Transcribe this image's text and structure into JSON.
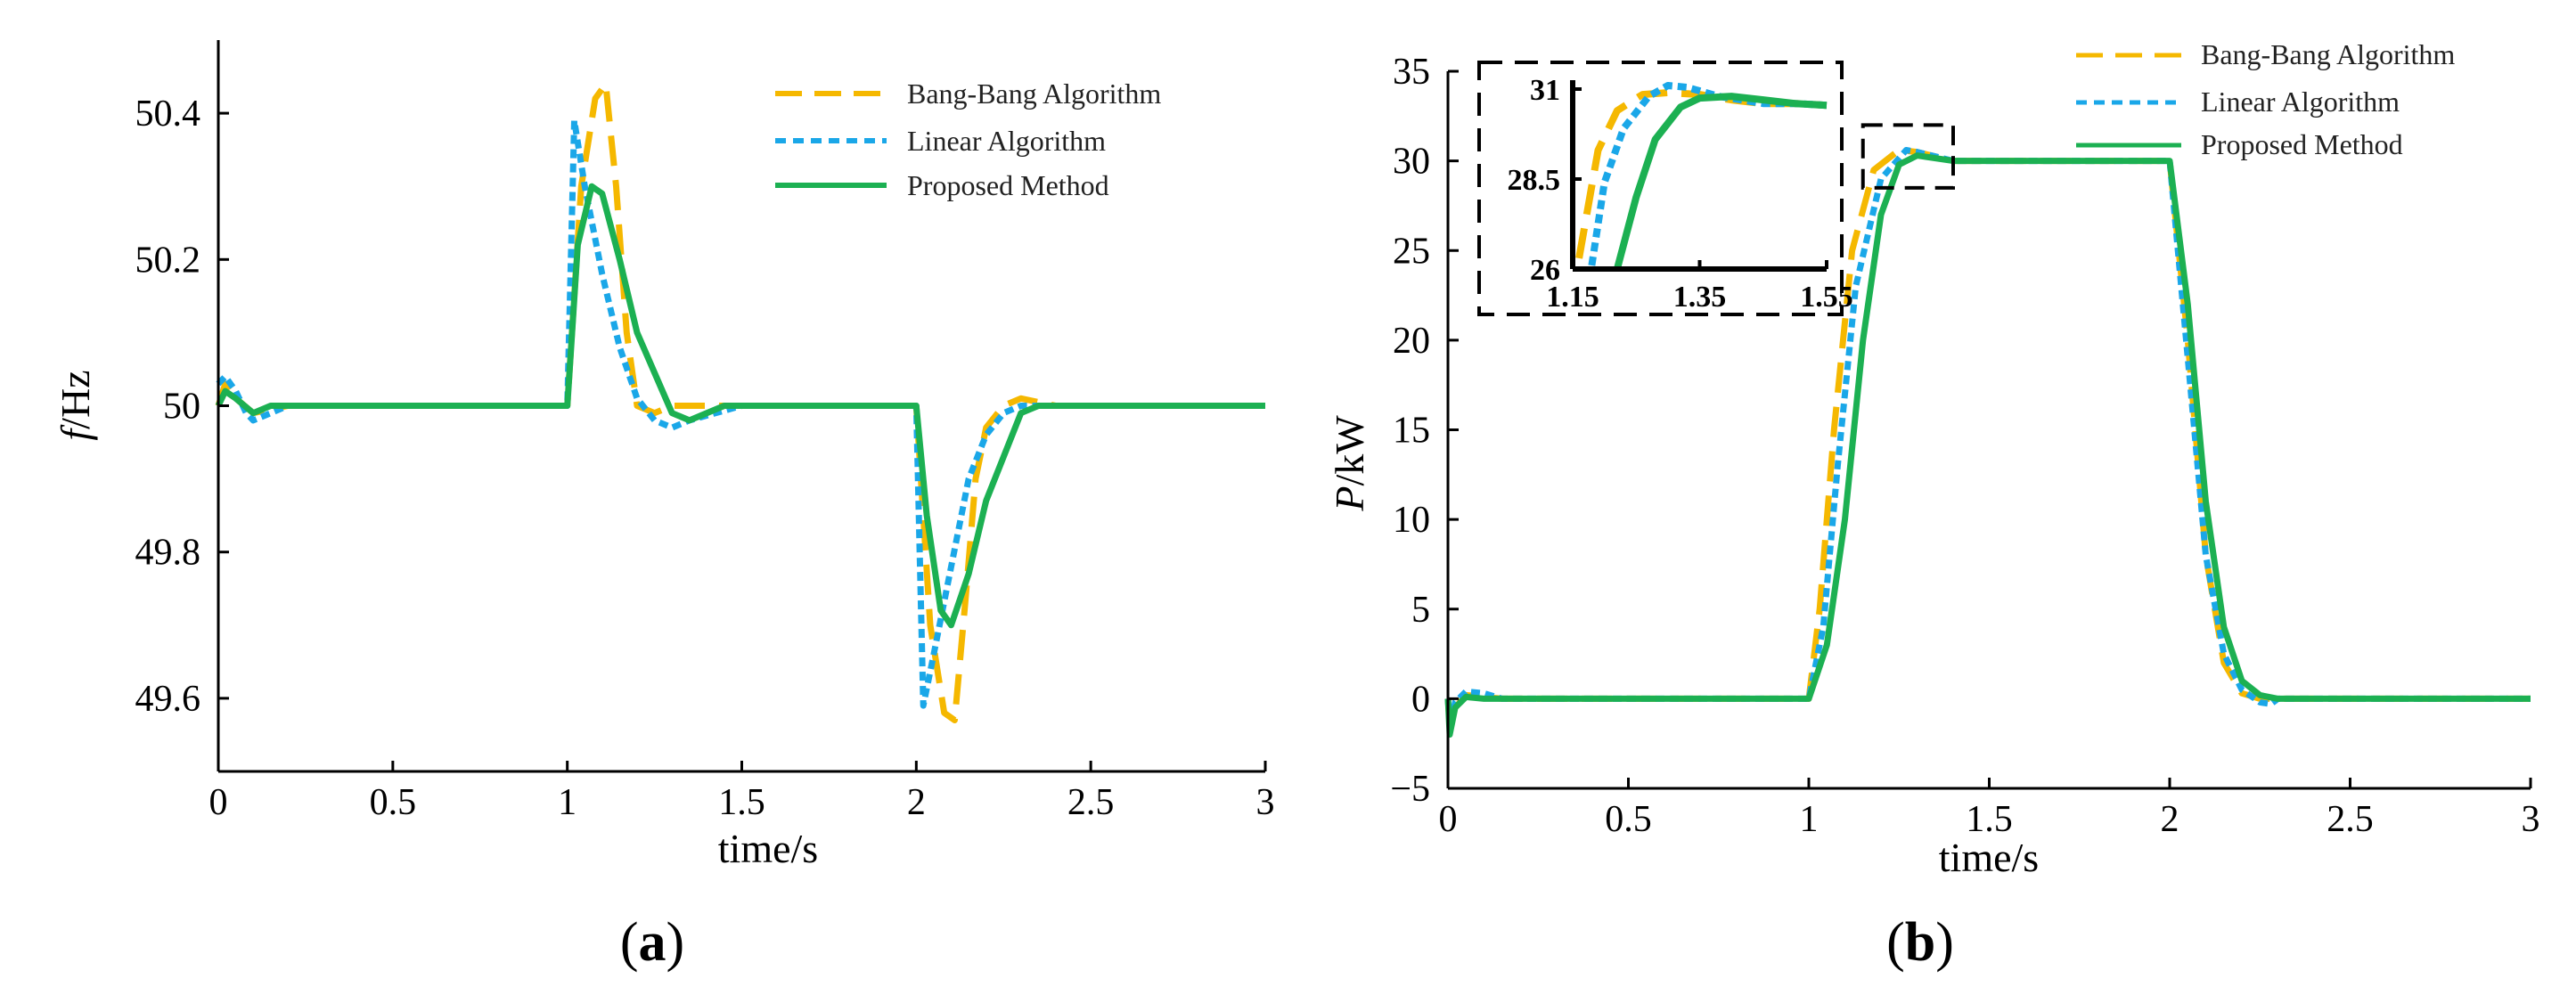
{
  "colors": {
    "bang": "#F5B800",
    "linear": "#1AA7E8",
    "proposed": "#1CB052"
  },
  "chart_data": [
    {
      "id": "a",
      "type": "line",
      "panel_label": "a",
      "xlabel": "time/s",
      "ylabel_italic": "f",
      "ylabel_unit": "/Hz",
      "xlim": [
        0,
        3
      ],
      "ylim": [
        49.5,
        50.5
      ],
      "xticks": [
        "0",
        "0.5",
        "1",
        "1.5",
        "2",
        "2.5",
        "3"
      ],
      "yticks": [
        "49.6",
        "49.8",
        "50",
        "50.2",
        "50.4"
      ],
      "legend": [
        "Bang-Bang Algorithm",
        "Linear Algorithm",
        "Proposed Method"
      ],
      "legend_position": "top-right",
      "series": [
        {
          "name": "Bang-Bang Algorithm",
          "style": "dashed",
          "x": [
            0,
            0.02,
            0.05,
            0.1,
            0.2,
            0.999,
            1.0,
            1.04,
            1.08,
            1.11,
            1.14,
            1.17,
            1.2,
            1.25,
            1.3,
            1.4,
            1.999,
            2.0,
            2.04,
            2.08,
            2.11,
            2.14,
            2.17,
            2.2,
            2.25,
            2.3,
            2.4,
            3.0
          ],
          "y": [
            50.0,
            50.03,
            50.01,
            49.99,
            50.0,
            50.0,
            50.0,
            50.3,
            50.42,
            50.44,
            50.3,
            50.1,
            50.0,
            49.99,
            50.0,
            50.0,
            50.0,
            50.0,
            49.7,
            49.58,
            49.57,
            49.73,
            49.9,
            49.97,
            50.0,
            50.01,
            50.0,
            50.0
          ]
        },
        {
          "name": "Linear Algorithm",
          "style": "dotted",
          "x": [
            0,
            0.02,
            0.05,
            0.08,
            0.1,
            0.2,
            0.999,
            1.0,
            1.02,
            1.05,
            1.1,
            1.15,
            1.2,
            1.25,
            1.3,
            1.35,
            1.5,
            1.999,
            2.0,
            2.02,
            2.05,
            2.1,
            2.15,
            2.2,
            2.25,
            2.3,
            2.35,
            3.0
          ],
          "y": [
            50.03,
            50.04,
            50.02,
            49.99,
            49.98,
            50.0,
            50.0,
            50.0,
            50.39,
            50.3,
            50.18,
            50.08,
            50.01,
            49.98,
            49.97,
            49.98,
            50.0,
            50.0,
            50.0,
            49.59,
            49.66,
            49.78,
            49.9,
            49.96,
            49.99,
            50.0,
            50.0,
            50.0
          ]
        },
        {
          "name": "Proposed Method",
          "style": "solid",
          "x": [
            0,
            0.02,
            0.05,
            0.1,
            0.15,
            0.999,
            1.0,
            1.03,
            1.07,
            1.1,
            1.15,
            1.2,
            1.3,
            1.35,
            1.45,
            1.999,
            2.0,
            2.03,
            2.07,
            2.1,
            2.15,
            2.2,
            2.3,
            2.35,
            3.0
          ],
          "y": [
            50.0,
            50.02,
            50.01,
            49.99,
            50.0,
            50.0,
            50.0,
            50.22,
            50.3,
            50.29,
            50.2,
            50.1,
            49.99,
            49.98,
            50.0,
            50.0,
            50.0,
            49.85,
            49.72,
            49.7,
            49.77,
            49.87,
            49.99,
            50.0,
            50.0
          ]
        }
      ]
    },
    {
      "id": "b",
      "type": "line",
      "panel_label": "b",
      "xlabel": "time/s",
      "ylabel_italic": "P",
      "ylabel_unit": "/kW",
      "xlim": [
        0,
        3
      ],
      "ylim": [
        -5,
        35
      ],
      "xticks": [
        "0",
        "0.5",
        "1",
        "1.5",
        "2",
        "2.5",
        "3"
      ],
      "yticks": [
        "−5",
        "0",
        "5",
        "10",
        "15",
        "20",
        "25",
        "30",
        "35"
      ],
      "legend": [
        "Bang-Bang Algorithm",
        "Linear Algorithm",
        "Proposed Method"
      ],
      "legend_position": "top-right",
      "zoom_region": {
        "x": [
          1.15,
          1.4
        ],
        "y": [
          28.5,
          32
        ]
      },
      "inset": {
        "xlim": [
          1.15,
          1.55
        ],
        "ylim": [
          26,
          31
        ],
        "xticks": [
          "1.15",
          "1.35",
          "1.55"
        ],
        "yticks": [
          "26",
          "28.5",
          "31"
        ],
        "series": [
          {
            "name": "Bang-Bang Algorithm",
            "x": [
              1.16,
              1.19,
              1.22,
              1.26,
              1.3,
              1.35,
              1.4,
              1.45,
              1.5,
              1.55
            ],
            "y": [
              26.3,
              29.3,
              30.4,
              30.85,
              30.9,
              30.85,
              30.7,
              30.6,
              30.6,
              30.55
            ]
          },
          {
            "name": "Linear Algorithm",
            "x": [
              1.18,
              1.2,
              1.23,
              1.27,
              1.3,
              1.33,
              1.38,
              1.45,
              1.5,
              1.55
            ],
            "y": [
              26.1,
              28.4,
              29.9,
              30.8,
              31.1,
              31.05,
              30.8,
              30.6,
              30.6,
              30.55
            ]
          },
          {
            "name": "Proposed Method",
            "x": [
              1.22,
              1.25,
              1.28,
              1.32,
              1.35,
              1.4,
              1.45,
              1.5,
              1.55
            ],
            "y": [
              26.0,
              28.0,
              29.6,
              30.5,
              30.75,
              30.8,
              30.7,
              30.6,
              30.55
            ]
          }
        ]
      },
      "series": [
        {
          "name": "Bang-Bang Algorithm",
          "style": "dashed",
          "x": [
            0,
            0.005,
            0.02,
            0.05,
            0.1,
            0.15,
            1.0,
            1.03,
            1.07,
            1.12,
            1.18,
            1.25,
            1.3,
            1.4,
            2.0,
            2.05,
            2.1,
            2.15,
            2.2,
            2.25,
            2.3,
            3.0
          ],
          "y": [
            0,
            -1.5,
            -0.5,
            0.2,
            0.1,
            0,
            0,
            5,
            15,
            25,
            29.5,
            30.6,
            30.5,
            30,
            30,
            20,
            8,
            2,
            0.3,
            0,
            0,
            0
          ]
        },
        {
          "name": "Linear Algorithm",
          "style": "dotted",
          "x": [
            0,
            0.005,
            0.02,
            0.05,
            0.1,
            0.15,
            1.0,
            1.04,
            1.08,
            1.13,
            1.2,
            1.27,
            1.3,
            1.4,
            2.0,
            2.05,
            2.1,
            2.15,
            2.2,
            2.25,
            2.28,
            2.3,
            3.0
          ],
          "y": [
            0,
            -1.5,
            -0.2,
            0.4,
            0.3,
            0,
            0,
            4,
            13,
            23,
            29,
            30.6,
            30.5,
            30,
            30,
            19,
            8,
            2.5,
            0.5,
            -0.2,
            -0.3,
            0,
            0
          ]
        },
        {
          "name": "Proposed Method",
          "style": "solid",
          "x": [
            0,
            0.005,
            0.02,
            0.05,
            0.1,
            0.15,
            1.0,
            1.05,
            1.1,
            1.15,
            1.2,
            1.25,
            1.3,
            1.4,
            2.0,
            2.05,
            2.1,
            2.15,
            2.2,
            2.25,
            2.3,
            3.0
          ],
          "y": [
            0,
            -2,
            -0.5,
            0.1,
            0,
            0,
            0,
            3,
            10,
            20,
            27,
            29.8,
            30.3,
            30,
            30,
            22,
            11,
            4,
            1,
            0.2,
            0,
            0
          ]
        }
      ]
    }
  ]
}
